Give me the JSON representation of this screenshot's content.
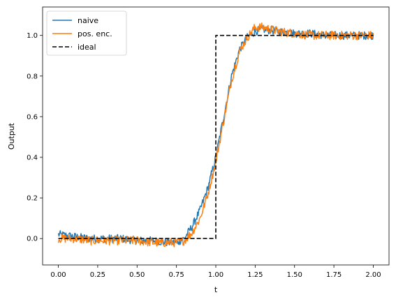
{
  "chart_data": {
    "type": "line",
    "title": "",
    "xlabel": "t",
    "ylabel": "Output",
    "xlim": [
      -0.1,
      2.1
    ],
    "ylim": [
      -0.13,
      1.14
    ],
    "xticks": [
      0.0,
      0.25,
      0.5,
      0.75,
      1.0,
      1.25,
      1.5,
      1.75,
      2.0
    ],
    "xtick_labels": [
      "0.00",
      "0.25",
      "0.50",
      "0.75",
      "1.00",
      "1.25",
      "1.50",
      "1.75",
      "2.00"
    ],
    "yticks": [
      0.0,
      0.2,
      0.4,
      0.6,
      0.8,
      1.0
    ],
    "ytick_labels": [
      "0.0",
      "0.2",
      "0.4",
      "0.6",
      "0.8",
      "1.0"
    ],
    "grid": false,
    "legend_position": "top-left",
    "series": [
      {
        "name": "naive",
        "color": "#1f77b4",
        "style": "solid",
        "noise_amplitude": 0.02,
        "x": [
          0.0,
          0.1,
          0.2,
          0.3,
          0.4,
          0.5,
          0.6,
          0.7,
          0.75,
          0.8,
          0.85,
          0.9,
          0.95,
          1.0,
          1.05,
          1.1,
          1.15,
          1.2,
          1.25,
          1.3,
          1.4,
          1.5,
          1.6,
          1.7,
          1.8,
          1.9,
          2.0
        ],
        "y": [
          0.02,
          0.01,
          0.0,
          0.0,
          0.0,
          -0.01,
          -0.01,
          -0.02,
          -0.02,
          0.0,
          0.06,
          0.14,
          0.25,
          0.4,
          0.6,
          0.8,
          0.93,
          0.99,
          1.02,
          1.03,
          1.02,
          1.01,
          1.01,
          1.0,
          1.0,
          1.0,
          1.0
        ]
      },
      {
        "name": "pos. enc.",
        "color": "#ff7f0e",
        "style": "solid",
        "noise_amplitude": 0.022,
        "x": [
          0.0,
          0.1,
          0.2,
          0.3,
          0.4,
          0.5,
          0.6,
          0.7,
          0.75,
          0.8,
          0.85,
          0.9,
          0.95,
          1.0,
          1.05,
          1.1,
          1.15,
          1.2,
          1.25,
          1.3,
          1.4,
          1.5,
          1.6,
          1.7,
          1.8,
          1.9,
          2.0
        ],
        "y": [
          0.0,
          0.0,
          -0.01,
          -0.01,
          -0.01,
          -0.01,
          -0.02,
          -0.02,
          -0.02,
          -0.01,
          0.03,
          0.1,
          0.22,
          0.38,
          0.58,
          0.78,
          0.92,
          0.99,
          1.04,
          1.04,
          1.02,
          1.01,
          1.0,
          1.0,
          1.0,
          1.0,
          1.0
        ]
      },
      {
        "name": "ideal",
        "color": "#000000",
        "style": "dashed",
        "noise_amplitude": 0,
        "x": [
          0.0,
          1.0,
          1.0,
          2.0
        ],
        "y": [
          0.0,
          0.0,
          1.0,
          1.0
        ]
      }
    ]
  }
}
